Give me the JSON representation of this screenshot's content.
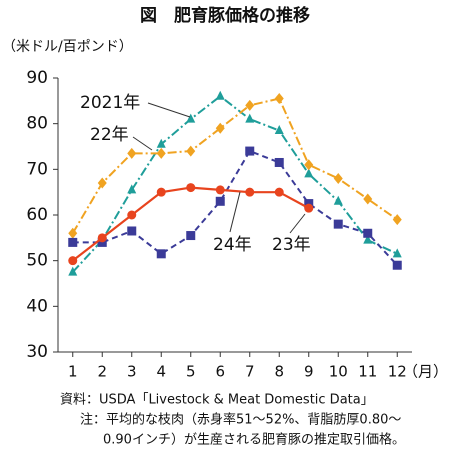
{
  "chart_data": {
    "type": "line",
    "title": "図　肥育豚価格の推移",
    "y_label": "（米ドル/百ポンド）",
    "x_label": "（月）",
    "categories": [
      "1",
      "2",
      "3",
      "4",
      "5",
      "6",
      "7",
      "8",
      "9",
      "10",
      "11",
      "12"
    ],
    "ylim": [
      30,
      90
    ],
    "yticks": [
      30,
      40,
      50,
      60,
      70,
      80,
      90
    ],
    "grid": false,
    "series": [
      {
        "name": "2021年",
        "color": "#1f9e9a",
        "dash": "dashdot",
        "marker": "triangle",
        "values": [
          47.5,
          54.5,
          65.5,
          75.5,
          81,
          86,
          81,
          78.5,
          69,
          63,
          54.5,
          51.5
        ]
      },
      {
        "name": "22年",
        "color": "#f0a321",
        "dash": "dashdot",
        "marker": "diamond",
        "values": [
          56,
          67,
          73.5,
          73.5,
          74,
          79,
          84,
          85.5,
          71,
          68,
          63.5,
          59
        ]
      },
      {
        "name": "23年",
        "color": "#3b3b98",
        "dash": "dashed",
        "marker": "square",
        "values": [
          54,
          54,
          56.5,
          51.5,
          55.5,
          63,
          74,
          71.5,
          62.5,
          58,
          56,
          49
        ]
      },
      {
        "name": "24年",
        "color": "#e8441e",
        "dash": "solid",
        "marker": "circle",
        "values": [
          50,
          55,
          60,
          65,
          66,
          65.5,
          65,
          65,
          61.5,
          null,
          null,
          null
        ]
      }
    ],
    "notes": [
      "資料：USDA「Livestock & Meat Domestic Data」",
      "注：平均的な枝肉（赤身率51～52%、背脂肪厚0.80～",
      "0.90インチ）が生産される肥育豚の推定取引価格。"
    ]
  }
}
